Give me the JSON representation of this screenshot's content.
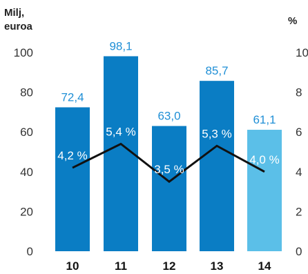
{
  "chart_data": {
    "type": "bar",
    "categories": [
      "10",
      "11",
      "12",
      "13",
      "14"
    ],
    "series": [
      {
        "values": [
          72.4,
          98.1,
          63.0,
          85.7,
          61.1
        ],
        "value_labels": [
          "72,4",
          "98,1",
          "63,0",
          "85,7",
          "61,1"
        ],
        "axis": "left"
      },
      {
        "type": "line",
        "values": [
          4.2,
          5.4,
          3.5,
          5.3,
          4.0
        ],
        "value_labels": [
          "4,2 %",
          "5,4 %",
          "3,5 %",
          "5,3 %",
          "4,0 %"
        ],
        "axis": "right"
      }
    ],
    "y_left": {
      "unit_line1": "Milj,",
      "unit_line2": "euroa",
      "ticks": [
        "0",
        "20",
        "40",
        "60",
        "80",
        "100"
      ],
      "ylim": [
        0,
        100
      ]
    },
    "y_right": {
      "unit": "%",
      "ticks": [
        "0",
        "2",
        "4",
        "6",
        "8",
        "10"
      ],
      "ylim": [
        0,
        10
      ]
    },
    "grid": false,
    "colors": {
      "bar": "#0a7dc4",
      "bar_highlight": "#5bbfe8",
      "value_text": "#1f8fd6",
      "line": "#111111"
    },
    "highlight_index": 4
  }
}
